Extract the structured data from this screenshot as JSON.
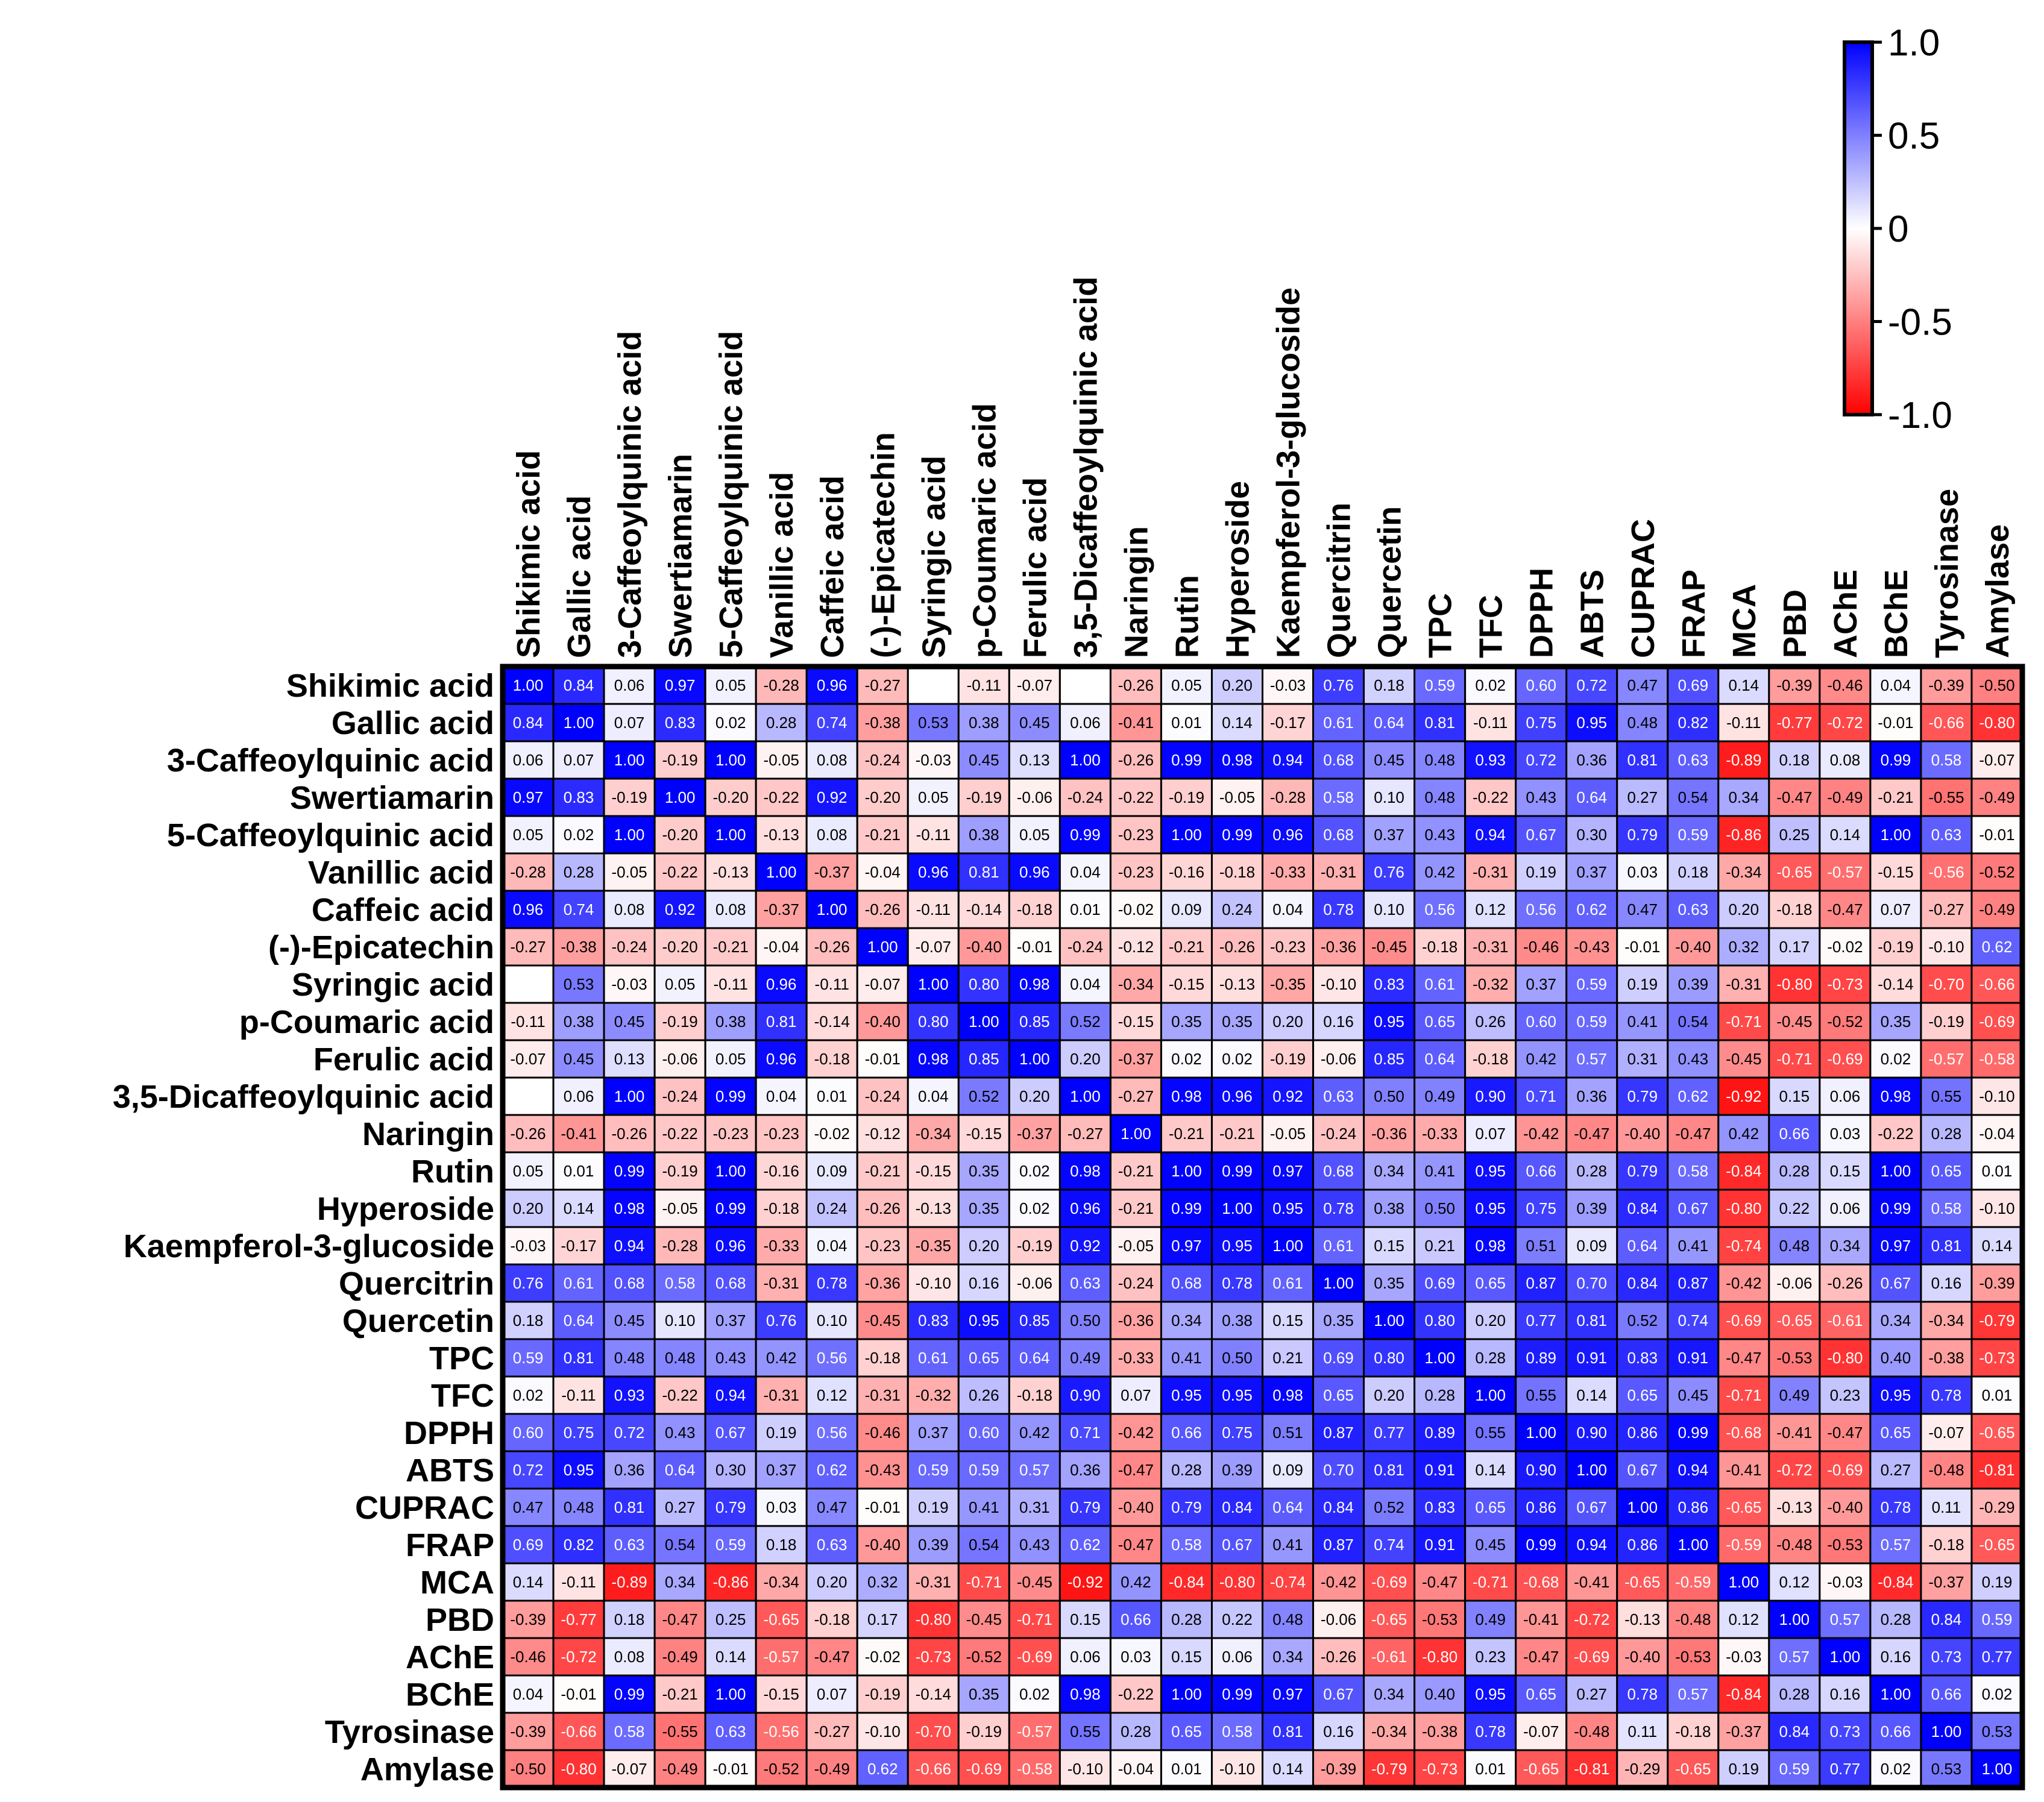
{
  "chart_data": {
    "type": "heatmap",
    "title": "",
    "xlabel": "",
    "ylabel": "",
    "labels": [
      "Shikimic acid",
      "Gallic acid",
      "3-Caffeoylquinic acid",
      "Swertiamarin",
      "5-Caffeoylquinic acid",
      "Vanillic acid",
      "Caffeic acid",
      "(-)-Epicatechin",
      "Syringic acid",
      "p-Coumaric acid",
      "Ferulic acid",
      "3,5-Dicaffeoylquinic acid",
      "Naringin",
      "Rutin",
      "Hyperoside",
      "Kaempferol-3-glucoside",
      "Quercitrin",
      "Quercetin",
      "TPC",
      "TFC",
      "DPPH",
      "ABTS",
      "CUPRAC",
      "FRAP",
      "MCA",
      "PBD",
      "AChE",
      "BChE",
      "Tyrosinase",
      "Amylase"
    ],
    "matrix": [
      [
        1.0,
        0.84,
        0.06,
        0.97,
        0.05,
        -0.28,
        0.96,
        -0.27,
        null,
        -0.11,
        -0.07,
        null,
        -0.26,
        0.05,
        0.2,
        -0.03,
        0.76,
        0.18,
        0.59,
        0.02,
        0.6,
        0.72,
        0.47,
        0.69,
        0.14,
        -0.39,
        -0.46,
        0.04,
        -0.39,
        -0.5
      ],
      [
        0.84,
        1.0,
        0.07,
        0.83,
        0.02,
        0.28,
        0.74,
        -0.38,
        0.53,
        0.38,
        0.45,
        0.06,
        -0.41,
        0.01,
        0.14,
        -0.17,
        0.61,
        0.64,
        0.81,
        -0.11,
        0.75,
        0.95,
        0.48,
        0.82,
        -0.11,
        -0.77,
        -0.72,
        -0.01,
        -0.66,
        -0.8
      ],
      [
        0.06,
        0.07,
        1.0,
        -0.19,
        1.0,
        -0.05,
        0.08,
        -0.24,
        -0.03,
        0.45,
        0.13,
        1.0,
        -0.26,
        0.99,
        0.98,
        0.94,
        0.68,
        0.45,
        0.48,
        0.93,
        0.72,
        0.36,
        0.81,
        0.63,
        -0.89,
        0.18,
        0.08,
        0.99,
        0.58,
        -0.07
      ],
      [
        0.97,
        0.83,
        -0.19,
        1.0,
        -0.2,
        -0.22,
        0.92,
        -0.2,
        0.05,
        -0.19,
        -0.06,
        -0.24,
        -0.22,
        -0.19,
        -0.05,
        -0.28,
        0.58,
        0.1,
        0.48,
        -0.22,
        0.43,
        0.64,
        0.27,
        0.54,
        0.34,
        -0.47,
        -0.49,
        -0.21,
        -0.55,
        -0.49
      ],
      [
        0.05,
        0.02,
        1.0,
        -0.2,
        1.0,
        -0.13,
        0.08,
        -0.21,
        -0.11,
        0.38,
        0.05,
        0.99,
        -0.23,
        1.0,
        0.99,
        0.96,
        0.68,
        0.37,
        0.43,
        0.94,
        0.67,
        0.3,
        0.79,
        0.59,
        -0.86,
        0.25,
        0.14,
        1.0,
        0.63,
        -0.01
      ],
      [
        -0.28,
        0.28,
        -0.05,
        -0.22,
        -0.13,
        1.0,
        -0.37,
        -0.04,
        0.96,
        0.81,
        0.96,
        0.04,
        -0.23,
        -0.16,
        -0.18,
        -0.33,
        -0.31,
        0.76,
        0.42,
        -0.31,
        0.19,
        0.37,
        0.03,
        0.18,
        -0.34,
        -0.65,
        -0.57,
        -0.15,
        -0.56,
        -0.52
      ],
      [
        0.96,
        0.74,
        0.08,
        0.92,
        0.08,
        -0.37,
        1.0,
        -0.26,
        -0.11,
        -0.14,
        -0.18,
        0.01,
        -0.02,
        0.09,
        0.24,
        0.04,
        0.78,
        0.1,
        0.56,
        0.12,
        0.56,
        0.62,
        0.47,
        0.63,
        0.2,
        -0.18,
        -0.47,
        0.07,
        -0.27,
        -0.49
      ],
      [
        -0.27,
        -0.38,
        -0.24,
        -0.2,
        -0.21,
        -0.04,
        -0.26,
        1.0,
        -0.07,
        -0.4,
        -0.01,
        -0.24,
        -0.12,
        -0.21,
        -0.26,
        -0.23,
        -0.36,
        -0.45,
        -0.18,
        -0.31,
        -0.46,
        -0.43,
        -0.01,
        -0.4,
        0.32,
        0.17,
        -0.02,
        -0.19,
        -0.1,
        0.62
      ],
      [
        null,
        0.53,
        -0.03,
        0.05,
        -0.11,
        0.96,
        -0.11,
        -0.07,
        1.0,
        0.8,
        0.98,
        0.04,
        -0.34,
        -0.15,
        -0.13,
        -0.35,
        -0.1,
        0.83,
        0.61,
        -0.32,
        0.37,
        0.59,
        0.19,
        0.39,
        -0.31,
        -0.8,
        -0.73,
        -0.14,
        -0.7,
        -0.66
      ],
      [
        -0.11,
        0.38,
        0.45,
        -0.19,
        0.38,
        0.81,
        -0.14,
        -0.4,
        0.8,
        1.0,
        0.85,
        0.52,
        -0.15,
        0.35,
        0.35,
        0.2,
        0.16,
        0.95,
        0.65,
        0.26,
        0.6,
        0.59,
        0.41,
        0.54,
        -0.71,
        -0.45,
        -0.52,
        0.35,
        -0.19,
        -0.69
      ],
      [
        -0.07,
        0.45,
        0.13,
        -0.06,
        0.05,
        0.96,
        -0.18,
        -0.01,
        0.98,
        0.85,
        1.0,
        0.2,
        -0.37,
        0.02,
        0.02,
        -0.19,
        -0.06,
        0.85,
        0.64,
        -0.18,
        0.42,
        0.57,
        0.31,
        0.43,
        -0.45,
        -0.71,
        -0.69,
        0.02,
        -0.57,
        -0.58
      ],
      [
        null,
        0.06,
        1.0,
        -0.24,
        0.99,
        0.04,
        0.01,
        -0.24,
        0.04,
        0.52,
        0.2,
        1.0,
        -0.27,
        0.98,
        0.96,
        0.92,
        0.63,
        0.5,
        0.49,
        0.9,
        0.71,
        0.36,
        0.79,
        0.62,
        -0.92,
        0.15,
        0.06,
        0.98,
        0.55,
        -0.1
      ],
      [
        -0.26,
        -0.41,
        -0.26,
        -0.22,
        -0.23,
        -0.23,
        -0.02,
        -0.12,
        -0.34,
        -0.15,
        -0.37,
        -0.27,
        1.0,
        -0.21,
        -0.21,
        -0.05,
        -0.24,
        -0.36,
        -0.33,
        0.07,
        -0.42,
        -0.47,
        -0.4,
        -0.47,
        0.42,
        0.66,
        0.03,
        -0.22,
        0.28,
        -0.04
      ],
      [
        0.05,
        0.01,
        0.99,
        -0.19,
        1.0,
        -0.16,
        0.09,
        -0.21,
        -0.15,
        0.35,
        0.02,
        0.98,
        -0.21,
        1.0,
        0.99,
        0.97,
        0.68,
        0.34,
        0.41,
        0.95,
        0.66,
        0.28,
        0.79,
        0.58,
        -0.84,
        0.28,
        0.15,
        1.0,
        0.65,
        0.01
      ],
      [
        0.2,
        0.14,
        0.98,
        -0.05,
        0.99,
        -0.18,
        0.24,
        -0.26,
        -0.13,
        0.35,
        0.02,
        0.96,
        -0.21,
        0.99,
        1.0,
        0.95,
        0.78,
        0.38,
        0.5,
        0.95,
        0.75,
        0.39,
        0.84,
        0.67,
        -0.8,
        0.22,
        0.06,
        0.99,
        0.58,
        -0.1
      ],
      [
        -0.03,
        -0.17,
        0.94,
        -0.28,
        0.96,
        -0.33,
        0.04,
        -0.23,
        -0.35,
        0.2,
        -0.19,
        0.92,
        -0.05,
        0.97,
        0.95,
        1.0,
        0.61,
        0.15,
        0.21,
        0.98,
        0.51,
        0.09,
        0.64,
        0.41,
        -0.74,
        0.48,
        0.34,
        0.97,
        0.81,
        0.14
      ],
      [
        0.76,
        0.61,
        0.68,
        0.58,
        0.68,
        -0.31,
        0.78,
        -0.36,
        -0.1,
        0.16,
        -0.06,
        0.63,
        -0.24,
        0.68,
        0.78,
        0.61,
        1.0,
        0.35,
        0.69,
        0.65,
        0.87,
        0.7,
        0.84,
        0.87,
        -0.42,
        -0.06,
        -0.26,
        0.67,
        0.16,
        -0.39
      ],
      [
        0.18,
        0.64,
        0.45,
        0.1,
        0.37,
        0.76,
        0.1,
        -0.45,
        0.83,
        0.95,
        0.85,
        0.5,
        -0.36,
        0.34,
        0.38,
        0.15,
        0.35,
        1.0,
        0.8,
        0.2,
        0.77,
        0.81,
        0.52,
        0.74,
        -0.69,
        -0.65,
        -0.61,
        0.34,
        -0.34,
        -0.79
      ],
      [
        0.59,
        0.81,
        0.48,
        0.48,
        0.43,
        0.42,
        0.56,
        -0.18,
        0.61,
        0.65,
        0.64,
        0.49,
        -0.33,
        0.41,
        0.5,
        0.21,
        0.69,
        0.8,
        1.0,
        0.28,
        0.89,
        0.91,
        0.83,
        0.91,
        -0.47,
        -0.53,
        -0.8,
        0.4,
        -0.38,
        -0.73
      ],
      [
        0.02,
        -0.11,
        0.93,
        -0.22,
        0.94,
        -0.31,
        0.12,
        -0.31,
        -0.32,
        0.26,
        -0.18,
        0.9,
        0.07,
        0.95,
        0.95,
        0.98,
        0.65,
        0.2,
        0.28,
        1.0,
        0.55,
        0.14,
        0.65,
        0.45,
        -0.71,
        0.49,
        0.23,
        0.95,
        0.78,
        0.01
      ],
      [
        0.6,
        0.75,
        0.72,
        0.43,
        0.67,
        0.19,
        0.56,
        -0.46,
        0.37,
        0.6,
        0.42,
        0.71,
        -0.42,
        0.66,
        0.75,
        0.51,
        0.87,
        0.77,
        0.89,
        0.55,
        1.0,
        0.9,
        0.86,
        0.99,
        -0.68,
        -0.41,
        -0.47,
        0.65,
        -0.07,
        -0.65
      ],
      [
        0.72,
        0.95,
        0.36,
        0.64,
        0.3,
        0.37,
        0.62,
        -0.43,
        0.59,
        0.59,
        0.57,
        0.36,
        -0.47,
        0.28,
        0.39,
        0.09,
        0.7,
        0.81,
        0.91,
        0.14,
        0.9,
        1.0,
        0.67,
        0.94,
        -0.41,
        -0.72,
        -0.69,
        0.27,
        -0.48,
        -0.81
      ],
      [
        0.47,
        0.48,
        0.81,
        0.27,
        0.79,
        0.03,
        0.47,
        -0.01,
        0.19,
        0.41,
        0.31,
        0.79,
        -0.4,
        0.79,
        0.84,
        0.64,
        0.84,
        0.52,
        0.83,
        0.65,
        0.86,
        0.67,
        1.0,
        0.86,
        -0.65,
        -0.13,
        -0.4,
        0.78,
        0.11,
        -0.29
      ],
      [
        0.69,
        0.82,
        0.63,
        0.54,
        0.59,
        0.18,
        0.63,
        -0.4,
        0.39,
        0.54,
        0.43,
        0.62,
        -0.47,
        0.58,
        0.67,
        0.41,
        0.87,
        0.74,
        0.91,
        0.45,
        0.99,
        0.94,
        0.86,
        1.0,
        -0.59,
        -0.48,
        -0.53,
        0.57,
        -0.18,
        -0.65
      ],
      [
        0.14,
        -0.11,
        -0.89,
        0.34,
        -0.86,
        -0.34,
        0.2,
        0.32,
        -0.31,
        -0.71,
        -0.45,
        -0.92,
        0.42,
        -0.84,
        -0.8,
        -0.74,
        -0.42,
        -0.69,
        -0.47,
        -0.71,
        -0.68,
        -0.41,
        -0.65,
        -0.59,
        1.0,
        0.12,
        -0.03,
        -0.84,
        -0.37,
        0.19
      ],
      [
        -0.39,
        -0.77,
        0.18,
        -0.47,
        0.25,
        -0.65,
        -0.18,
        0.17,
        -0.8,
        -0.45,
        -0.71,
        0.15,
        0.66,
        0.28,
        0.22,
        0.48,
        -0.06,
        -0.65,
        -0.53,
        0.49,
        -0.41,
        -0.72,
        -0.13,
        -0.48,
        0.12,
        1.0,
        0.57,
        0.28,
        0.84,
        0.59
      ],
      [
        -0.46,
        -0.72,
        0.08,
        -0.49,
        0.14,
        -0.57,
        -0.47,
        -0.02,
        -0.73,
        -0.52,
        -0.69,
        0.06,
        0.03,
        0.15,
        0.06,
        0.34,
        -0.26,
        -0.61,
        -0.8,
        0.23,
        -0.47,
        -0.69,
        -0.4,
        -0.53,
        -0.03,
        0.57,
        1.0,
        0.16,
        0.73,
        0.77
      ],
      [
        0.04,
        -0.01,
        0.99,
        -0.21,
        1.0,
        -0.15,
        0.07,
        -0.19,
        -0.14,
        0.35,
        0.02,
        0.98,
        -0.22,
        1.0,
        0.99,
        0.97,
        0.67,
        0.34,
        0.4,
        0.95,
        0.65,
        0.27,
        0.78,
        0.57,
        -0.84,
        0.28,
        0.16,
        1.0,
        0.66,
        0.02
      ],
      [
        -0.39,
        -0.66,
        0.58,
        -0.55,
        0.63,
        -0.56,
        -0.27,
        -0.1,
        -0.7,
        -0.19,
        -0.57,
        0.55,
        0.28,
        0.65,
        0.58,
        0.81,
        0.16,
        -0.34,
        -0.38,
        0.78,
        -0.07,
        -0.48,
        0.11,
        -0.18,
        -0.37,
        0.84,
        0.73,
        0.66,
        1.0,
        0.53
      ],
      [
        -0.5,
        -0.8,
        -0.07,
        -0.49,
        -0.01,
        -0.52,
        -0.49,
        0.62,
        -0.66,
        -0.69,
        -0.58,
        -0.1,
        -0.04,
        0.01,
        -0.1,
        0.14,
        -0.39,
        -0.79,
        -0.73,
        0.01,
        -0.65,
        -0.81,
        -0.29,
        -0.65,
        0.19,
        0.59,
        0.77,
        0.02,
        0.53,
        1.0
      ]
    ],
    "colorbar": {
      "range": [
        -1.0,
        1.0
      ],
      "ticks": [
        1.0,
        0.5,
        0,
        -0.5,
        -1.0
      ],
      "tick_labels": [
        "1.0",
        "0.5",
        "0",
        "-0.5",
        "-1.0"
      ],
      "colors": {
        "positive": "#0000FF",
        "zero": "#FFFFFF",
        "negative": "#FF0000"
      }
    },
    "legend_position": "top-right"
  }
}
